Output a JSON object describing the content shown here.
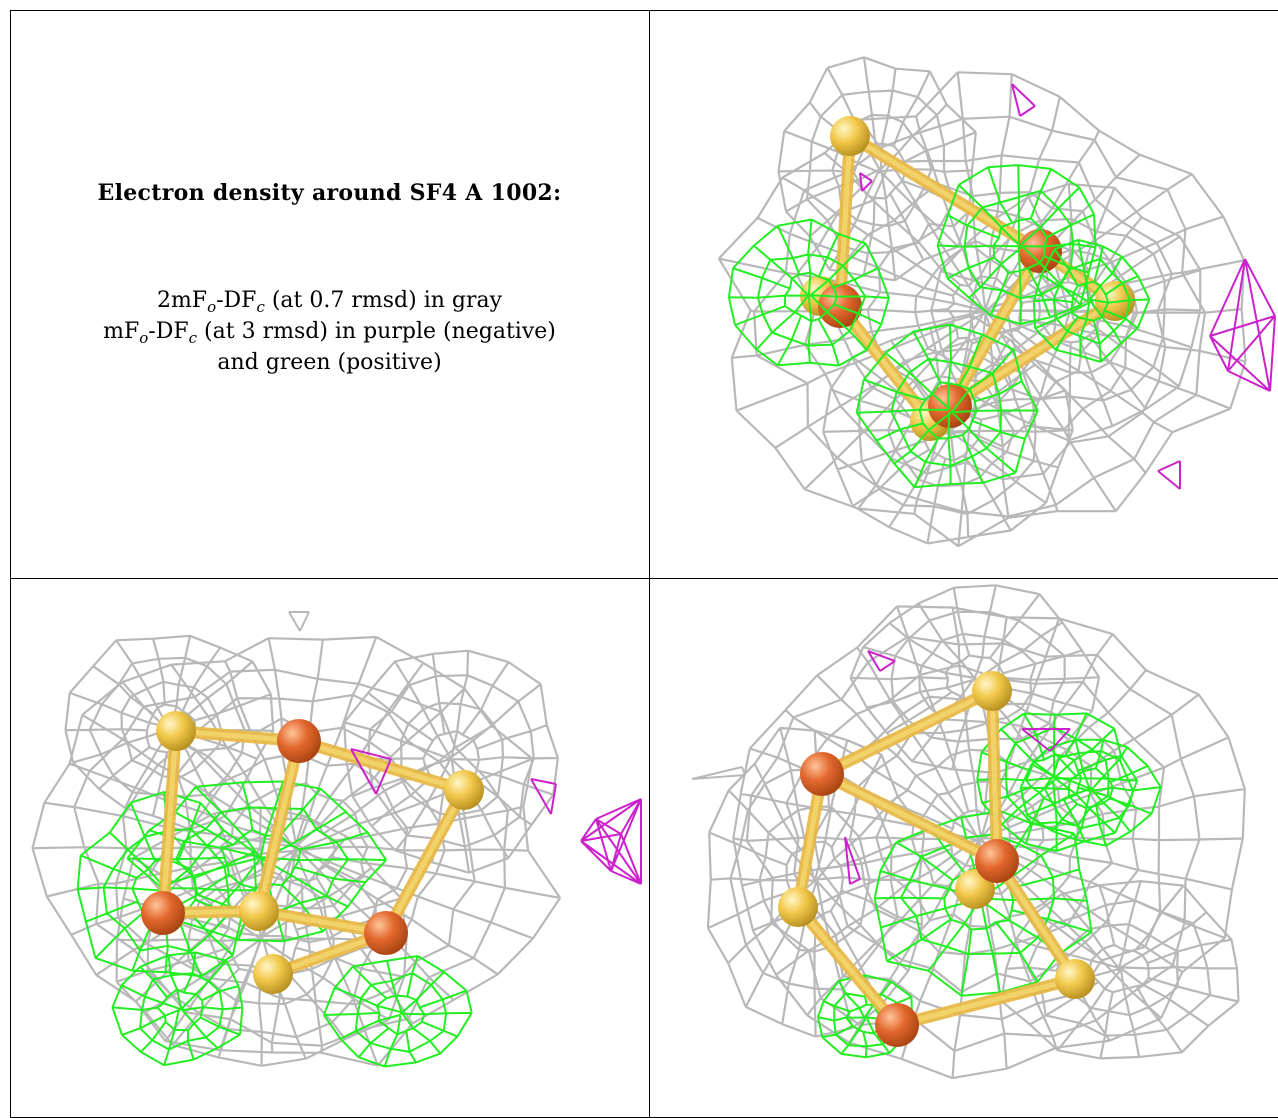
{
  "caption": {
    "title": "Electron density around SF4 A 1002:",
    "line1": {
      "pre": "2mF",
      "sub1": "o",
      "mid": "-DF",
      "sub2": "c",
      "post": " (at 0.7 rmsd) in gray"
    },
    "line2": {
      "pre": "mF",
      "sub1": "o",
      "mid": "-DF",
      "sub2": "c",
      "post": " (at 3 rmsd) in purple (negative)"
    },
    "line3": "and green (positive)"
  },
  "colors": {
    "map_2fofc": "#b8b8b8",
    "map_fofc_negative": "#cc22cc",
    "map_fofc_positive": "#22ee22",
    "sulfur_atom": "#f2c84a",
    "iron_atom": "#e2682e",
    "background": "#ffffff",
    "grid_lines": "#000000"
  },
  "panels": [
    {
      "id": "view-top-right",
      "icon": "molecular-density-view-1"
    },
    {
      "id": "view-bottom-left",
      "icon": "molecular-density-view-2"
    },
    {
      "id": "view-bottom-right",
      "icon": "molecular-density-view-3"
    }
  ]
}
